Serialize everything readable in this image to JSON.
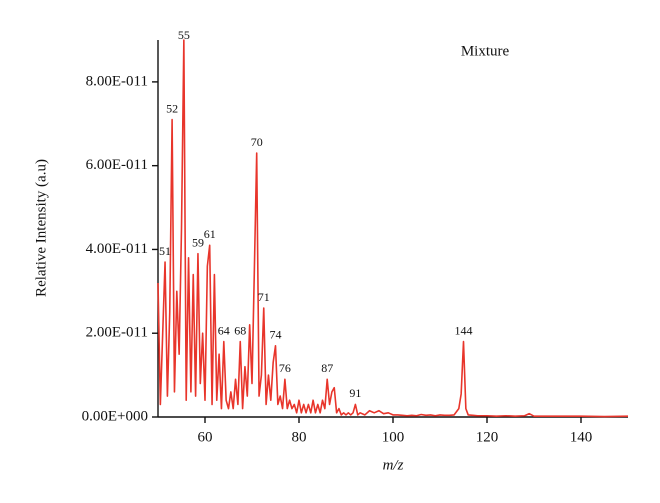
{
  "chart_data": {
    "type": "line",
    "xlabel": "m/z",
    "ylabel": "Relative Intensity (a.u)",
    "xlim": [
      50,
      150
    ],
    "ylim": [
      0,
      9e-11
    ],
    "xticks": [
      60,
      80,
      100,
      120,
      140
    ],
    "yticks": [
      {
        "value": 0,
        "label": "0.00E+000"
      },
      {
        "value": 2e-11,
        "label": "2.00E-011"
      },
      {
        "value": 4e-11,
        "label": "4.00E-011"
      },
      {
        "value": 6e-11,
        "label": "6.00E-011"
      },
      {
        "value": 8e-11,
        "label": "8.00E-011"
      }
    ],
    "x": [
      50,
      50.5,
      51,
      51.5,
      52,
      52.5,
      53,
      53.5,
      54,
      54.5,
      55,
      55.5,
      56,
      56.5,
      57,
      57.5,
      58,
      58.5,
      59,
      59.5,
      60,
      60.5,
      61,
      61.5,
      62,
      62.5,
      63,
      63.5,
      64,
      64.5,
      65,
      65.5,
      66,
      66.5,
      67,
      67.5,
      68,
      68.5,
      69,
      69.5,
      70,
      70.5,
      71,
      71.5,
      72,
      72.5,
      73,
      73.5,
      74,
      74.5,
      75,
      75.5,
      76,
      76.5,
      77,
      77.5,
      78,
      78.5,
      79,
      79.5,
      80,
      80.5,
      81,
      81.5,
      82,
      82.5,
      83,
      83.5,
      84,
      84.5,
      85,
      85.5,
      86,
      86.5,
      87,
      87.5,
      88,
      88.5,
      89,
      89.5,
      90,
      90.5,
      91,
      91.5,
      92,
      92.5,
      93,
      94,
      95,
      96,
      97,
      98,
      99,
      100,
      101,
      102,
      103,
      104,
      105,
      106,
      107,
      108,
      109,
      110,
      111,
      112,
      113,
      114,
      114.5,
      115,
      115.5,
      116,
      117,
      118,
      120,
      122,
      124,
      126,
      128,
      129,
      130,
      132,
      135,
      140,
      145,
      150
    ],
    "series": [
      {
        "name": "Mixture",
        "color": "#e8352b",
        "values": [
          3.2e-11,
          3e-12,
          2e-11,
          3.7e-11,
          5e-12,
          2.5e-11,
          7.1e-11,
          6e-12,
          3e-11,
          1.5e-11,
          4.5e-11,
          9e-11,
          4e-12,
          3.8e-11,
          6e-12,
          3.4e-11,
          5e-12,
          3.9e-11,
          8e-12,
          2e-11,
          4e-12,
          3.6e-11,
          4.1e-11,
          3e-12,
          3.4e-11,
          4e-12,
          1.5e-11,
          2e-12,
          1.8e-11,
          4e-12,
          2e-12,
          6e-12,
          2e-12,
          9e-12,
          3e-12,
          1.8e-11,
          2e-12,
          1.2e-11,
          5e-12,
          2.2e-11,
          8e-12,
          3.5e-11,
          6.3e-11,
          5e-12,
          1e-11,
          2.6e-11,
          3e-12,
          1e-11,
          4e-12,
          1.3e-11,
          1.7e-11,
          3e-12,
          5e-12,
          2e-12,
          9e-12,
          2e-12,
          4e-12,
          2e-12,
          3e-12,
          1e-12,
          4e-12,
          1e-12,
          3e-12,
          1e-12,
          3e-12,
          1e-12,
          4e-12,
          1e-12,
          3e-12,
          1e-12,
          4e-12,
          2e-12,
          9e-12,
          3e-12,
          6e-12,
          7e-12,
          1e-12,
          2e-12,
          5e-13,
          1e-12,
          5e-13,
          1e-12,
          5e-13,
          1e-12,
          3e-12,
          5e-13,
          1e-12,
          5e-13,
          1.5e-12,
          1e-12,
          1.5e-12,
          8e-13,
          1e-12,
          5e-13,
          5e-13,
          4e-13,
          3e-13,
          4e-13,
          3e-13,
          6e-13,
          4e-13,
          5e-13,
          3e-13,
          5e-13,
          4e-13,
          4e-13,
          5e-13,
          2e-12,
          5.5e-12,
          1.8e-11,
          2e-12,
          5e-13,
          4e-13,
          3e-13,
          3e-13,
          2e-13,
          3e-13,
          2e-13,
          3e-13,
          8e-13,
          2e-13,
          2e-13,
          2e-13,
          2e-13,
          1e-13,
          2e-13
        ]
      }
    ],
    "annotations": [
      {
        "text": "51",
        "x": 51.5
      },
      {
        "text": "52",
        "x": 53
      },
      {
        "text": "55",
        "x": 55.5
      },
      {
        "text": "59",
        "x": 58.5
      },
      {
        "text": "61",
        "x": 61
      },
      {
        "text": "64",
        "x": 64
      },
      {
        "text": "68",
        "x": 67.5
      },
      {
        "text": "70",
        "x": 71
      },
      {
        "text": "71",
        "x": 72.5
      },
      {
        "text": "74",
        "x": 75
      },
      {
        "text": "76",
        "x": 77
      },
      {
        "text": "87",
        "x": 86
      },
      {
        "text": "91",
        "x": 92
      },
      {
        "text": "144",
        "x": 115
      }
    ]
  }
}
